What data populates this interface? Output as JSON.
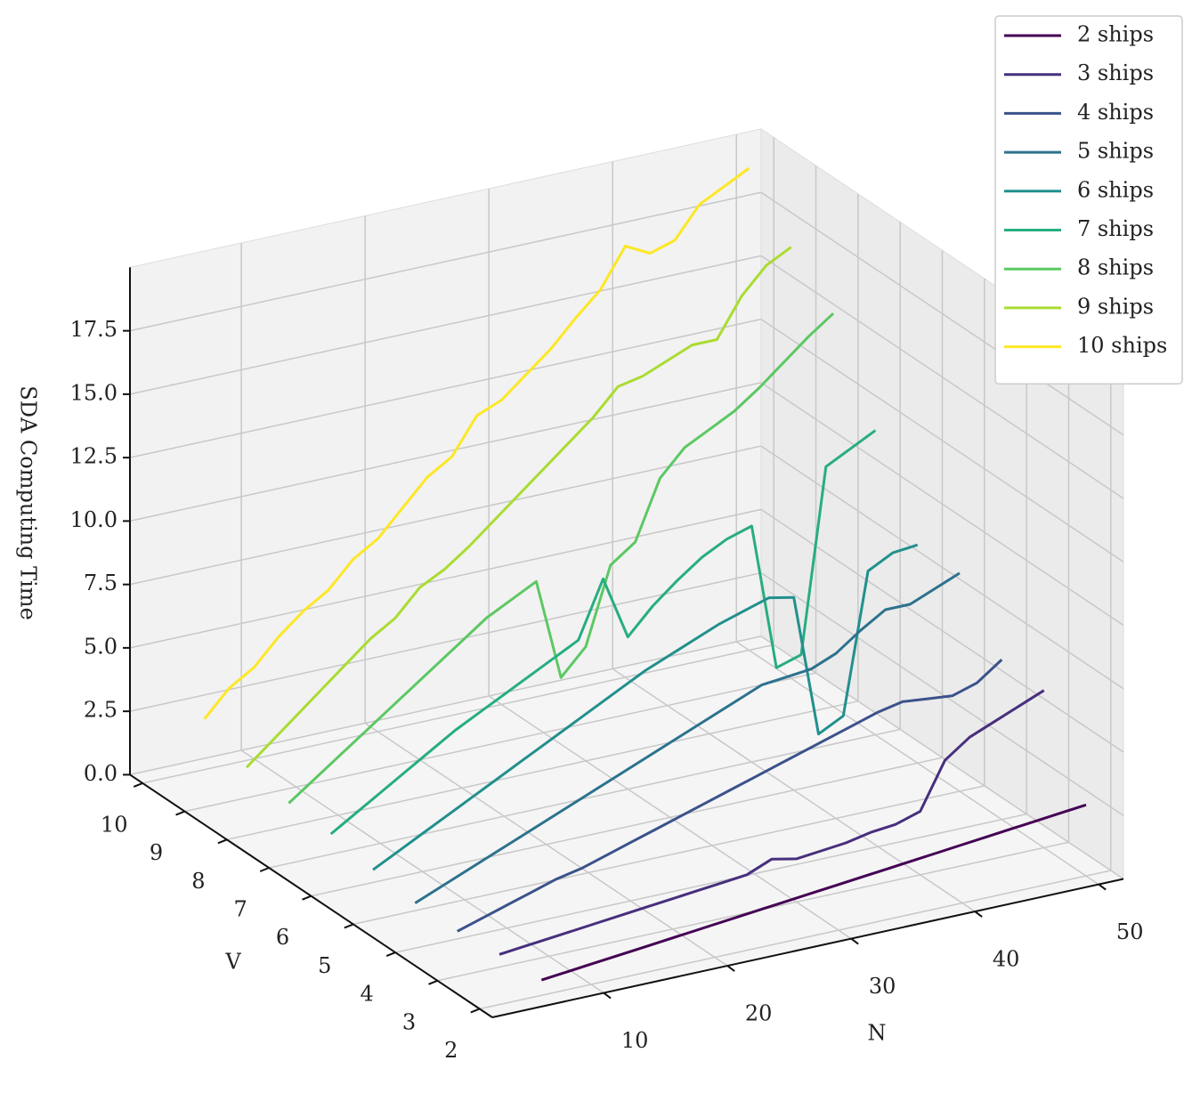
{
  "chart_data": {
    "type": "line3d",
    "xlabel": "N",
    "ylabel": "V",
    "zlabel": "SDA Computing Time",
    "x": [
      6,
      8,
      10,
      12,
      14,
      16,
      18,
      20,
      22,
      24,
      26,
      28,
      30,
      32,
      34,
      36,
      38,
      40,
      42,
      44,
      46,
      48,
      50
    ],
    "xlim": [
      1,
      52
    ],
    "xticks": [
      10,
      20,
      30,
      40,
      50
    ],
    "ylim": [
      1.7,
      10.3
    ],
    "yticks": [
      2,
      3,
      4,
      5,
      6,
      7,
      8,
      9,
      10
    ],
    "zlim": [
      0,
      20
    ],
    "zticks": [
      {
        "value": 0,
        "label": "0.0"
      },
      2.5,
      {
        "value": 5,
        "label": "5.0"
      },
      7.5,
      {
        "value": 10,
        "label": "10.0"
      },
      12.5,
      {
        "value": 15,
        "label": "15.0"
      },
      17.5
    ],
    "grid": true,
    "legend": "upper right",
    "series": [
      {
        "name": "2 ships",
        "v": 2,
        "color": "#440154",
        "values": [
          0.6,
          0.7,
          0.8,
          0.9,
          1.0,
          1.1,
          1.2,
          1.3,
          1.4,
          1.5,
          1.6,
          1.7,
          1.8,
          1.9,
          2.0,
          2.1,
          2.2,
          2.3,
          2.4,
          2.5,
          2.6,
          2.7,
          2.8
        ]
      },
      {
        "name": "3 ships",
        "v": 3,
        "color": "#472f7d",
        "values": [
          0.5,
          0.6,
          0.7,
          0.8,
          0.9,
          1.0,
          1.1,
          1.2,
          1.3,
          1.4,
          1.5,
          1.9,
          1.7,
          1.8,
          1.9,
          2.1,
          2.2,
          2.5,
          4.3,
          5.0,
          5.4,
          5.8,
          6.2
        ]
      },
      {
        "name": "4 ships",
        "v": 4,
        "color": "#3b528b",
        "values": [
          0.3,
          0.6,
          0.9,
          1.2,
          1.5,
          1.7,
          2.0,
          2.3,
          2.6,
          2.9,
          3.2,
          3.5,
          3.8,
          4.1,
          4.4,
          4.7,
          5.0,
          5.3,
          5.5,
          5.4,
          5.3,
          5.6,
          6.3
        ]
      },
      {
        "name": "5 ships",
        "v": 5,
        "color": "#2c728e",
        "values": [
          0.3,
          0.7,
          1.1,
          1.5,
          1.9,
          2.3,
          2.7,
          3.1,
          3.5,
          3.9,
          4.3,
          4.7,
          5.1,
          5.5,
          5.9,
          6.0,
          6.1,
          6.5,
          7.2,
          7.8,
          7.8,
          8.2,
          8.6
        ]
      },
      {
        "name": "6 ships",
        "v": 6,
        "color": "#21908d",
        "values": [
          0.5,
          1.0,
          1.5,
          2.0,
          2.5,
          3.0,
          3.5,
          4.0,
          4.5,
          5.0,
          5.5,
          6.0,
          6.4,
          6.8,
          7.2,
          7.5,
          7.8,
          7.6,
          2.0,
          2.5,
          8.0,
          8.5,
          8.6
        ]
      },
      {
        "name": "7 ships",
        "v": 7,
        "color": "#27ad81",
        "values": [
          0.8,
          1.4,
          2.0,
          2.6,
          3.2,
          3.8,
          4.3,
          4.8,
          5.3,
          5.8,
          6.3,
          8.5,
          6.0,
          7.0,
          7.8,
          8.5,
          9.0,
          9.3,
          3.5,
          3.8,
          11.0,
          11.5,
          12.0
        ]
      },
      {
        "name": "8 ships",
        "v": 8,
        "color": "#5cc863",
        "values": [
          0.9,
          1.6,
          2.3,
          3.0,
          3.7,
          4.4,
          5.1,
          5.8,
          6.5,
          7.0,
          7.5,
          3.5,
          4.5,
          7.5,
          8.2,
          10.5,
          11.5,
          12.0,
          12.5,
          13.2,
          14.0,
          14.8,
          15.5
        ]
      },
      {
        "name": "9 ships",
        "v": 9,
        "color": "#aadc32",
        "values": [
          1.2,
          2.0,
          2.8,
          3.6,
          4.4,
          5.2,
          5.8,
          6.8,
          7.3,
          8.0,
          8.8,
          9.6,
          10.4,
          11.2,
          12.0,
          13.0,
          13.2,
          13.6,
          14.0,
          14.0,
          15.5,
          16.5,
          17.0
        ]
      },
      {
        "name": "10 ships",
        "v": 10,
        "color": "#fde725",
        "values": [
          2.0,
          3.0,
          3.6,
          4.6,
          5.4,
          6.0,
          7.0,
          7.6,
          8.6,
          9.6,
          10.2,
          11.6,
          12.0,
          12.8,
          13.6,
          14.6,
          15.5,
          17.0,
          16.5,
          16.8,
          18.0,
          18.5,
          19.0
        ]
      }
    ]
  }
}
